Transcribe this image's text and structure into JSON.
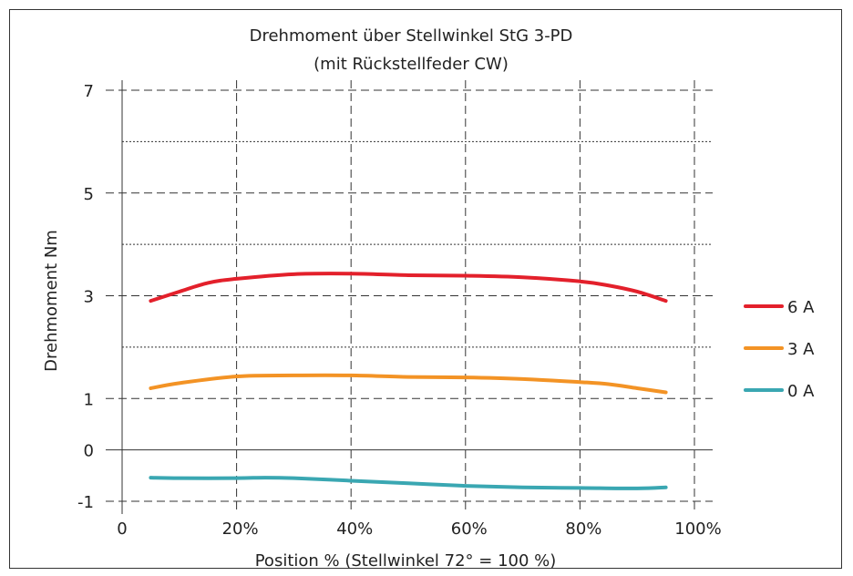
{
  "chart_data": {
    "type": "line",
    "title": "Drehmoment über Stellwinkel StG 3-PD",
    "subtitle": "(mit Rückstellfeder CW)",
    "xlabel": "Position % (Stellwinkel 72° = 100 %)",
    "ylabel": "Drehmoment Nm",
    "xlim": [
      0,
      100
    ],
    "x_ticks": [
      {
        "value": 0,
        "label": "0"
      },
      {
        "value": 20,
        "label": "20%"
      },
      {
        "value": 40,
        "label": "40%"
      },
      {
        "value": 60,
        "label": "60%"
      },
      {
        "value": 80,
        "label": "80%"
      },
      {
        "value": 100,
        "label": "100%"
      }
    ],
    "y_ticks": [
      {
        "value": 7,
        "label": "7"
      },
      {
        "value": 5,
        "label": "5"
      },
      {
        "value": 3,
        "label": "3"
      },
      {
        "value": 1,
        "label": "1"
      },
      {
        "value": 0,
        "label": "0"
      },
      {
        "value": -1,
        "label": "-1"
      }
    ],
    "ylim": [
      -1,
      7
    ],
    "grid": true,
    "legend": "right",
    "series": [
      {
        "name": "6 A",
        "color": "#e3202b",
        "x": [
          5,
          10,
          15,
          20,
          30,
          40,
          50,
          60,
          70,
          80,
          85,
          90,
          95
        ],
        "y": [
          2.9,
          3.08,
          3.25,
          3.33,
          3.42,
          3.43,
          3.4,
          3.39,
          3.36,
          3.28,
          3.2,
          3.08,
          2.9
        ]
      },
      {
        "name": "3 A",
        "color": "#f39325",
        "x": [
          5,
          10,
          20,
          30,
          40,
          50,
          60,
          70,
          80,
          85,
          90,
          95
        ],
        "y": [
          1.2,
          1.3,
          1.43,
          1.45,
          1.45,
          1.42,
          1.41,
          1.38,
          1.32,
          1.28,
          1.2,
          1.12
        ]
      },
      {
        "name": "0 A",
        "color": "#3aa7b2",
        "x": [
          5,
          10,
          20,
          25,
          30,
          40,
          50,
          60,
          70,
          80,
          90,
          95
        ],
        "y": [
          -0.54,
          -0.55,
          -0.55,
          -0.54,
          -0.55,
          -0.6,
          -0.65,
          -0.7,
          -0.73,
          -0.74,
          -0.75,
          -0.73
        ]
      }
    ]
  }
}
